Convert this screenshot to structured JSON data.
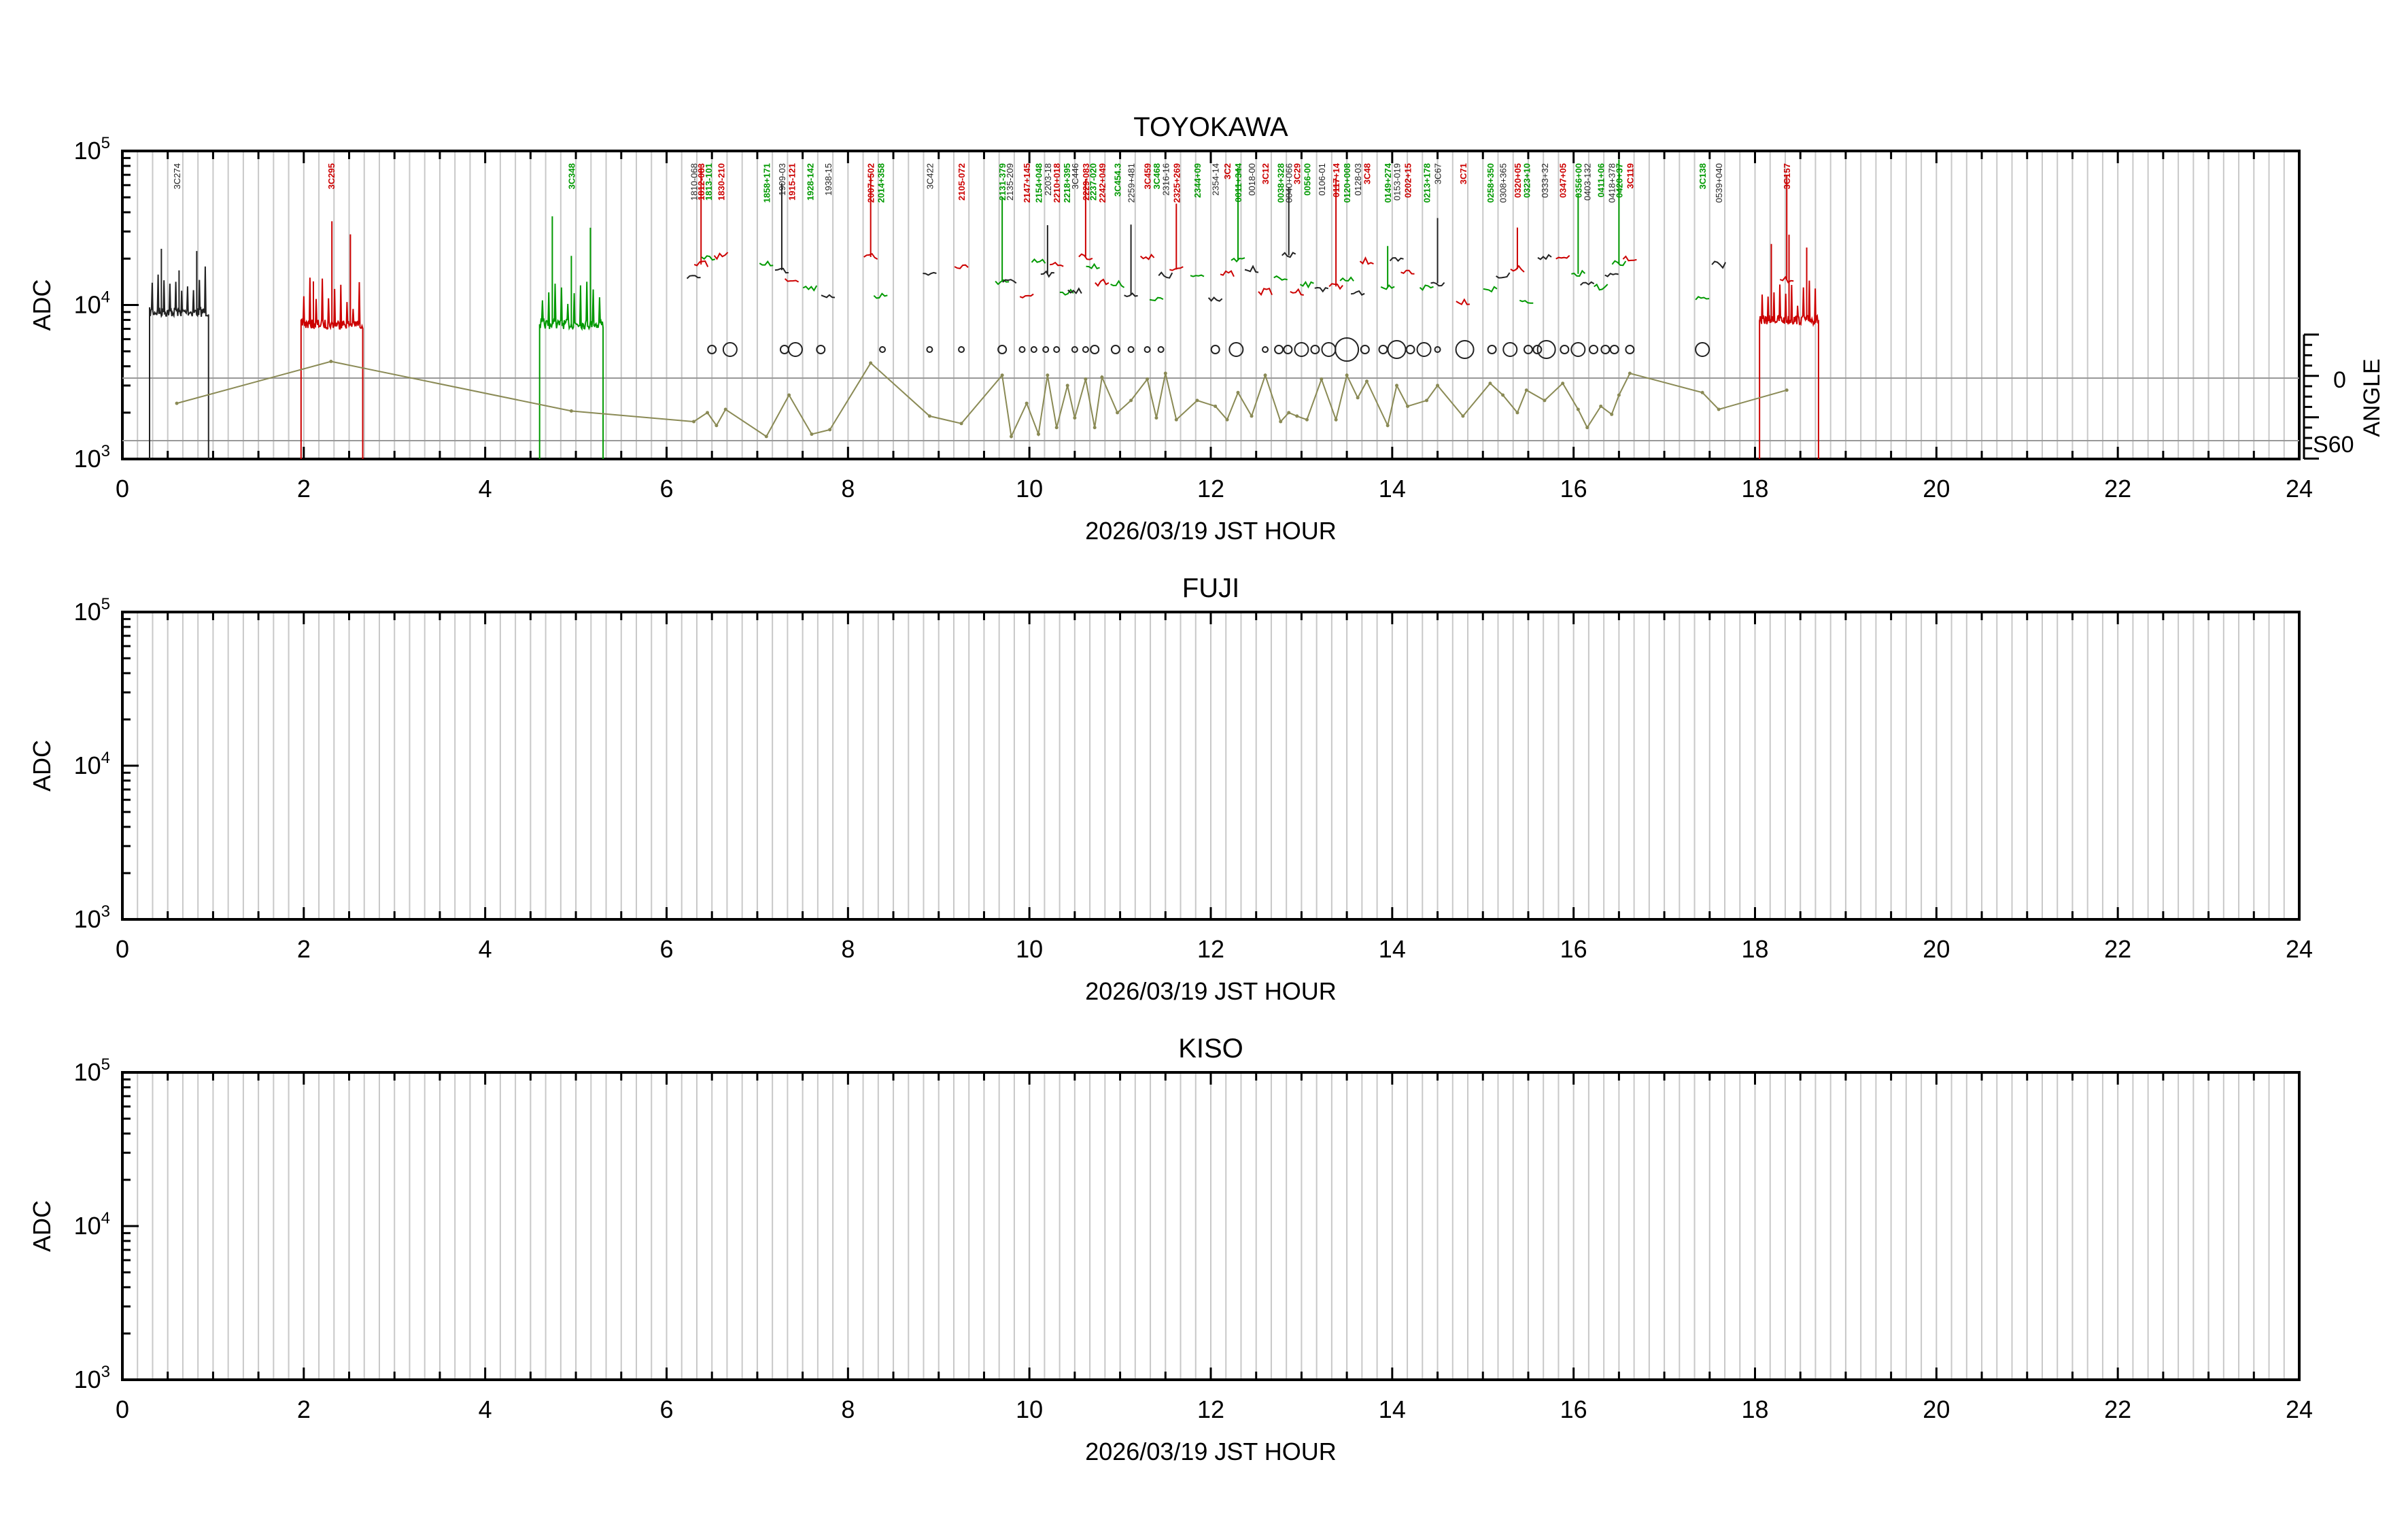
{
  "colors": {
    "axis": "#000000",
    "grid": "#c8c8c8",
    "black": "#222222",
    "red": "#cc0000",
    "green": "#009900",
    "olive": "#8a8a55",
    "refline": "#999999"
  },
  "panels": [
    {
      "id": "toyokawa",
      "title": "TOYOKAWA",
      "ylabel": "ADC",
      "xlabel": "2026/03/19 JST HOUR",
      "xlim": [
        0,
        24
      ],
      "x_ticks": [
        "0",
        "2",
        "4",
        "6",
        "8",
        "10",
        "12",
        "14",
        "16",
        "18",
        "20",
        "22",
        "24"
      ],
      "y_ticks": [
        {
          "base": "10",
          "exp": "3"
        },
        {
          "base": "10",
          "exp": "4"
        },
        {
          "base": "10",
          "exp": "5"
        }
      ],
      "ylim_log": [
        3,
        5
      ],
      "right_axis": {
        "label": "ANGLE",
        "ticks": [
          "0",
          "S60"
        ]
      },
      "sources": [
        {
          "name": "3C274",
          "t": 0.6,
          "c": "black"
        },
        {
          "name": "3C295",
          "t": 2.3,
          "c": "red"
        },
        {
          "name": "3C348",
          "t": 4.95,
          "c": "green"
        },
        {
          "name": "1810-068",
          "t": 6.3,
          "c": "black"
        },
        {
          "name": "1812-083",
          "t": 6.38,
          "c": "red"
        },
        {
          "name": "1813-101",
          "t": 6.46,
          "c": "green"
        },
        {
          "name": "1830-210",
          "t": 6.6,
          "c": "red"
        },
        {
          "name": "1858+171",
          "t": 7.1,
          "c": "green"
        },
        {
          "name": "1909-03",
          "t": 7.27,
          "c": "black"
        },
        {
          "name": "1915-121",
          "t": 7.38,
          "c": "red"
        },
        {
          "name": "1928-142",
          "t": 7.58,
          "c": "green"
        },
        {
          "name": "1938-15",
          "t": 7.78,
          "c": "black"
        },
        {
          "name": "2007+502",
          "t": 8.25,
          "c": "red"
        },
        {
          "name": "2014+358",
          "t": 8.36,
          "c": "green"
        },
        {
          "name": "3C422",
          "t": 8.9,
          "c": "black"
        },
        {
          "name": "2105-072",
          "t": 9.25,
          "c": "red"
        },
        {
          "name": "2131-379",
          "t": 9.7,
          "c": "green"
        },
        {
          "name": "2135-209",
          "t": 9.78,
          "c": "black"
        },
        {
          "name": "2147+145",
          "t": 9.97,
          "c": "red"
        },
        {
          "name": "2154+048",
          "t": 10.1,
          "c": "green"
        },
        {
          "name": "2203-18",
          "t": 10.2,
          "c": "black"
        },
        {
          "name": "2210+018",
          "t": 10.3,
          "c": "red"
        },
        {
          "name": "2218+395",
          "t": 10.41,
          "c": "green"
        },
        {
          "name": "3C446",
          "t": 10.5,
          "c": "black"
        },
        {
          "name": "2229-083",
          "t": 10.62,
          "c": "red"
        },
        {
          "name": "2237-020",
          "t": 10.7,
          "c": "green"
        },
        {
          "name": "2242+049",
          "t": 10.8,
          "c": "red"
        },
        {
          "name": "3C454.3",
          "t": 10.97,
          "c": "green"
        },
        {
          "name": "2259+481",
          "t": 11.12,
          "c": "black"
        },
        {
          "name": "3C459",
          "t": 11.3,
          "c": "red"
        },
        {
          "name": "3C468",
          "t": 11.4,
          "c": "green"
        },
        {
          "name": "2316-16",
          "t": 11.5,
          "c": "black"
        },
        {
          "name": "2325+269",
          "t": 11.62,
          "c": "red"
        },
        {
          "name": "2344+09",
          "t": 11.85,
          "c": "green"
        },
        {
          "name": "2354-14",
          "t": 12.05,
          "c": "black"
        },
        {
          "name": "3C2",
          "t": 12.18,
          "c": "red"
        },
        {
          "name": "0011+344",
          "t": 12.3,
          "c": "green"
        },
        {
          "name": "0018-00",
          "t": 12.45,
          "c": "black"
        },
        {
          "name": "3C12",
          "t": 12.6,
          "c": "red"
        },
        {
          "name": "0038+328",
          "t": 12.77,
          "c": "green"
        },
        {
          "name": "0040+066",
          "t": 12.86,
          "c": "black"
        },
        {
          "name": "3C29",
          "t": 12.95,
          "c": "red"
        },
        {
          "name": "0056-00",
          "t": 13.06,
          "c": "green"
        },
        {
          "name": "0106-01",
          "t": 13.22,
          "c": "black"
        },
        {
          "name": "0117+14",
          "t": 13.38,
          "c": "red"
        },
        {
          "name": "0120+008",
          "t": 13.5,
          "c": "green"
        },
        {
          "name": "0128-03",
          "t": 13.62,
          "c": "black"
        },
        {
          "name": "3C48",
          "t": 13.72,
          "c": "red"
        },
        {
          "name": "0149+274",
          "t": 13.95,
          "c": "green"
        },
        {
          "name": "0153-019",
          "t": 14.05,
          "c": "black"
        },
        {
          "name": "0202+15",
          "t": 14.17,
          "c": "red"
        },
        {
          "name": "0213+178",
          "t": 14.38,
          "c": "green"
        },
        {
          "name": "3C67",
          "t": 14.5,
          "c": "black"
        },
        {
          "name": "3C71",
          "t": 14.78,
          "c": "red"
        },
        {
          "name": "0258+350",
          "t": 15.08,
          "c": "green"
        },
        {
          "name": "0308+365",
          "t": 15.22,
          "c": "black"
        },
        {
          "name": "0320+05",
          "t": 15.38,
          "c": "red"
        },
        {
          "name": "0323+10",
          "t": 15.48,
          "c": "green"
        },
        {
          "name": "0333+32",
          "t": 15.68,
          "c": "black"
        },
        {
          "name": "0347+05",
          "t": 15.88,
          "c": "red"
        },
        {
          "name": "0356+00",
          "t": 16.05,
          "c": "green"
        },
        {
          "name": "0403-132",
          "t": 16.15,
          "c": "black"
        },
        {
          "name": "0411+06",
          "t": 16.3,
          "c": "green"
        },
        {
          "name": "0418+378",
          "t": 16.42,
          "c": "black"
        },
        {
          "name": "0420+37",
          "t": 16.5,
          "c": "green"
        },
        {
          "name": "3C119",
          "t": 16.62,
          "c": "red"
        },
        {
          "name": "3C138",
          "t": 17.42,
          "c": "green"
        },
        {
          "name": "0539+040",
          "t": 17.6,
          "c": "black"
        },
        {
          "name": "3C157",
          "t": 18.35,
          "c": "red"
        }
      ]
    },
    {
      "id": "fuji",
      "title": "FUJI",
      "ylabel": "ADC",
      "xlabel": "2026/03/19 JST HOUR",
      "xlim": [
        0,
        24
      ],
      "x_ticks": [
        "0",
        "2",
        "4",
        "6",
        "8",
        "10",
        "12",
        "14",
        "16",
        "18",
        "20",
        "22",
        "24"
      ],
      "y_ticks": [
        {
          "base": "10",
          "exp": "3"
        },
        {
          "base": "10",
          "exp": "4"
        },
        {
          "base": "10",
          "exp": "5"
        }
      ],
      "ylim_log": [
        3,
        5
      ]
    },
    {
      "id": "kiso",
      "title": "KISO",
      "ylabel": "ADC",
      "xlabel": "2026/03/19 JST HOUR",
      "xlim": [
        0,
        24
      ],
      "x_ticks": [
        "0",
        "2",
        "4",
        "6",
        "8",
        "10",
        "12",
        "14",
        "16",
        "18",
        "20",
        "22",
        "24"
      ],
      "y_ticks": [
        {
          "base": "10",
          "exp": "3"
        },
        {
          "base": "10",
          "exp": "4"
        },
        {
          "base": "10",
          "exp": "5"
        }
      ],
      "ylim_log": [
        3,
        5
      ]
    }
  ],
  "chart_data": [
    {
      "type": "line",
      "title": "TOYOKAWA",
      "xlabel": "2026/03/19 JST HOUR",
      "ylabel": "ADC",
      "xlim": [
        0,
        24
      ],
      "ylim": [
        1000,
        100000
      ],
      "yscale": "log",
      "grid": true,
      "observation_segments": [
        {
          "t_start": 0.3,
          "t_end": 0.95,
          "adc": 9000,
          "color": "black"
        },
        {
          "t_start": 1.97,
          "t_end": 2.65,
          "adc": 7500,
          "color": "red"
        },
        {
          "t_start": 4.6,
          "t_end": 5.3,
          "adc": 7500,
          "color": "green"
        },
        {
          "t_start": 18.05,
          "t_end": 18.7,
          "adc": 8000,
          "color": "red"
        }
      ],
      "angle_series": {
        "name": "ANGLE",
        "t": [
          0.6,
          2.3,
          4.95,
          6.3,
          6.45,
          6.55,
          6.65,
          7.1,
          7.35,
          7.6,
          7.8,
          8.25,
          8.9,
          9.25,
          9.7,
          9.8,
          9.97,
          10.1,
          10.2,
          10.3,
          10.42,
          10.5,
          10.62,
          10.72,
          10.8,
          10.97,
          11.12,
          11.3,
          11.4,
          11.5,
          11.62,
          11.85,
          12.05,
          12.18,
          12.3,
          12.45,
          12.6,
          12.77,
          12.86,
          12.95,
          13.06,
          13.22,
          13.38,
          13.5,
          13.62,
          13.72,
          13.95,
          14.05,
          14.17,
          14.38,
          14.5,
          14.78,
          15.08,
          15.22,
          15.38,
          15.48,
          15.68,
          15.88,
          16.05,
          16.15,
          16.3,
          16.42,
          16.5,
          16.62,
          17.42,
          17.6,
          18.35
        ],
        "adc": [
          2300,
          4300,
          2050,
          1750,
          2000,
          1650,
          2100,
          1400,
          2600,
          1450,
          1550,
          4200,
          1900,
          1700,
          3500,
          1400,
          2300,
          1450,
          3500,
          1600,
          3000,
          1850,
          3300,
          1600,
          3400,
          2000,
          2400,
          3300,
          1850,
          3600,
          1800,
          2400,
          2200,
          1800,
          2700,
          1900,
          3500,
          1750,
          2000,
          1900,
          1800,
          3300,
          1800,
          3500,
          2500,
          3200,
          1650,
          3000,
          2200,
          2400,
          3000,
          1900,
          3100,
          2600,
          2000,
          2800,
          2400,
          3100,
          2100,
          1600,
          2200,
          1950,
          2600,
          3600,
          2700,
          2100,
          2800
        ]
      },
      "source_markers": [
        {
          "t": 6.5,
          "size": "s"
        },
        {
          "t": 6.7,
          "size": "m"
        },
        {
          "t": 7.3,
          "size": "s"
        },
        {
          "t": 7.42,
          "size": "m"
        },
        {
          "t": 7.7,
          "size": "s"
        },
        {
          "t": 8.38,
          "size": "xs"
        },
        {
          "t": 8.9,
          "size": "xs"
        },
        {
          "t": 9.25,
          "size": "xs"
        },
        {
          "t": 9.7,
          "size": "s"
        },
        {
          "t": 9.92,
          "size": "xs"
        },
        {
          "t": 10.05,
          "size": "xs"
        },
        {
          "t": 10.18,
          "size": "xs"
        },
        {
          "t": 10.3,
          "size": "xs"
        },
        {
          "t": 10.5,
          "size": "xs"
        },
        {
          "t": 10.62,
          "size": "xs"
        },
        {
          "t": 10.72,
          "size": "s"
        },
        {
          "t": 10.95,
          "size": "s"
        },
        {
          "t": 11.12,
          "size": "xs"
        },
        {
          "t": 11.3,
          "size": "xs"
        },
        {
          "t": 11.45,
          "size": "xs"
        },
        {
          "t": 12.05,
          "size": "s"
        },
        {
          "t": 12.28,
          "size": "m"
        },
        {
          "t": 12.6,
          "size": "xs"
        },
        {
          "t": 12.75,
          "size": "s"
        },
        {
          "t": 12.85,
          "size": "s"
        },
        {
          "t": 13.0,
          "size": "m"
        },
        {
          "t": 13.15,
          "size": "s"
        },
        {
          "t": 13.3,
          "size": "m"
        },
        {
          "t": 13.5,
          "size": "xl"
        },
        {
          "t": 13.7,
          "size": "s"
        },
        {
          "t": 13.9,
          "size": "s"
        },
        {
          "t": 14.05,
          "size": "l"
        },
        {
          "t": 14.2,
          "size": "s"
        },
        {
          "t": 14.35,
          "size": "m"
        },
        {
          "t": 14.5,
          "size": "xs"
        },
        {
          "t": 14.8,
          "size": "l"
        },
        {
          "t": 15.1,
          "size": "s"
        },
        {
          "t": 15.3,
          "size": "m"
        },
        {
          "t": 15.5,
          "size": "s"
        },
        {
          "t": 15.6,
          "size": "s"
        },
        {
          "t": 15.7,
          "size": "l"
        },
        {
          "t": 15.9,
          "size": "s"
        },
        {
          "t": 16.05,
          "size": "m"
        },
        {
          "t": 16.22,
          "size": "s"
        },
        {
          "t": 16.35,
          "size": "s"
        },
        {
          "t": 16.45,
          "size": "s"
        },
        {
          "t": 16.62,
          "size": "s"
        },
        {
          "t": 17.42,
          "size": "m"
        }
      ]
    },
    {
      "type": "line",
      "title": "FUJI",
      "xlabel": "2026/03/19 JST HOUR",
      "ylabel": "ADC",
      "xlim": [
        0,
        24
      ],
      "ylim": [
        1000,
        100000
      ],
      "yscale": "log",
      "grid": true,
      "series": []
    },
    {
      "type": "line",
      "title": "KISO",
      "xlabel": "2026/03/19 JST HOUR",
      "ylabel": "ADC",
      "xlim": [
        0,
        24
      ],
      "ylim": [
        1000,
        100000
      ],
      "yscale": "log",
      "grid": true,
      "series": []
    }
  ]
}
